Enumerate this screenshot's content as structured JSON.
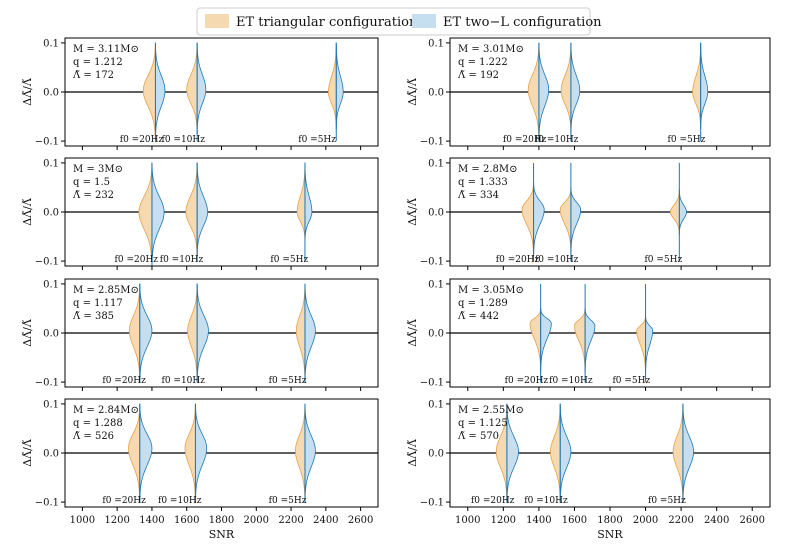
{
  "legend": {
    "entries": [
      {
        "label": "ET triangular configuration",
        "color": "#f5d9b0",
        "edge": "#e8a14a"
      },
      {
        "label": "ET two−L configuration",
        "color": "#c6dff0",
        "edge": "#1f77b4"
      }
    ]
  },
  "axes_common": {
    "xlabel": "SNR",
    "ylabel": "ΔΛ̃/Λ̃",
    "xlim": [
      900,
      2700
    ],
    "ylim": [
      -0.11,
      0.11
    ],
    "xticks": [
      1000,
      1200,
      1400,
      1600,
      1800,
      2000,
      2200,
      2400,
      2600
    ],
    "xtick_labels": [
      "1000",
      "1200",
      "1400",
      "1600",
      "1800",
      "2000",
      "2200",
      "2400",
      "2600"
    ],
    "yticks": [
      -0.1,
      0.0,
      0.1
    ],
    "ytick_labels": [
      "−0.1",
      "0.0",
      "0.1"
    ],
    "colors": {
      "triangular_fill": "#f5d9b0",
      "triangular_edge": "#e8a14a",
      "twoL_fill": "#c6dff0",
      "twoL_edge": "#1f77b4",
      "zero_line": "#000000"
    }
  },
  "chart_data": [
    {
      "type": "violin",
      "params": {
        "M": "M = 3.11M⊙",
        "q": "q = 1.212",
        "L": "Λ̃ = 172"
      },
      "violins": [
        {
          "x": 1420,
          "label": "f0 =20Hz",
          "label_x": 1340,
          "left_w": 70,
          "right_w": 55,
          "center": 0.003,
          "top": 0.1,
          "bottom": -0.1
        },
        {
          "x": 1660,
          "label": "f0 =10Hz",
          "label_x": 1580,
          "left_w": 60,
          "right_w": 50,
          "center": 0.005,
          "top": 0.1,
          "bottom": -0.085
        },
        {
          "x": 2460,
          "label": "f0 =5Hz",
          "label_x": 2350,
          "left_w": 45,
          "right_w": 40,
          "center": 0.0,
          "top": 0.1,
          "bottom": -0.075
        }
      ]
    },
    {
      "type": "violin",
      "params": {
        "M": "M = 3.01M⊙",
        "q": "q = 1.222",
        "L": "Λ̃ = 192"
      },
      "violins": [
        {
          "x": 1400,
          "label": "f0 =20Hz",
          "label_x": 1320,
          "left_w": 60,
          "right_w": 55,
          "center": 0.005,
          "top": 0.1,
          "bottom": -0.1
        },
        {
          "x": 1580,
          "label": "f0 =10Hz",
          "label_x": 1500,
          "left_w": 55,
          "right_w": 50,
          "center": 0.003,
          "top": 0.1,
          "bottom": -0.085
        },
        {
          "x": 2310,
          "label": "f0 =5Hz",
          "label_x": 2230,
          "left_w": 45,
          "right_w": 40,
          "center": 0.0,
          "top": 0.1,
          "bottom": -0.075
        }
      ]
    },
    {
      "type": "violin",
      "params": {
        "M": "M = 3M⊙",
        "q": "q = 1.5",
        "L": "Λ̃ = 232"
      },
      "violins": [
        {
          "x": 1400,
          "label": "f0 =20Hz",
          "label_x": 1310,
          "left_w": 75,
          "right_w": 70,
          "center": 0.0,
          "top": 0.1,
          "bottom": -0.11
        },
        {
          "x": 1660,
          "label": "f0 =10Hz",
          "label_x": 1570,
          "left_w": 65,
          "right_w": 60,
          "center": 0.0,
          "top": 0.1,
          "bottom": -0.09
        },
        {
          "x": 2280,
          "label": "f0 =5Hz",
          "label_x": 2190,
          "left_w": 45,
          "right_w": 40,
          "center": 0.0,
          "top": 0.1,
          "bottom": -0.06
        }
      ]
    },
    {
      "type": "violin",
      "params": {
        "M": "M = 2.8M⊙",
        "q": "q = 1.333",
        "L": "Λ̃ = 334"
      },
      "violins": [
        {
          "x": 1370,
          "label": "f0 =20Hz",
          "label_x": 1280,
          "left_w": 65,
          "right_w": 60,
          "center": 0.005,
          "top": 0.06,
          "bottom": -0.09
        },
        {
          "x": 1580,
          "label": "f0 =10Hz",
          "label_x": 1500,
          "left_w": 60,
          "right_w": 55,
          "center": 0.005,
          "top": 0.05,
          "bottom": -0.085
        },
        {
          "x": 2190,
          "label": "f0 =5Hz",
          "label_x": 2100,
          "left_w": 50,
          "right_w": 40,
          "center": 0.0,
          "top": 0.045,
          "bottom": -0.045
        }
      ]
    },
    {
      "type": "violin",
      "params": {
        "M": "M = 2.85M⊙",
        "q": "q = 1.117",
        "L": "Λ̃ = 385"
      },
      "violins": [
        {
          "x": 1330,
          "label": "f0 =20Hz",
          "label_x": 1240,
          "left_w": 60,
          "right_w": 70,
          "center": 0.005,
          "top": 0.1,
          "bottom": -0.1
        },
        {
          "x": 1660,
          "label": "f0 =10Hz",
          "label_x": 1580,
          "left_w": 55,
          "right_w": 65,
          "center": 0.005,
          "top": 0.1,
          "bottom": -0.1
        },
        {
          "x": 2280,
          "label": "f0 =5Hz",
          "label_x": 2180,
          "left_w": 50,
          "right_w": 60,
          "center": 0.005,
          "top": 0.1,
          "bottom": -0.1
        }
      ]
    },
    {
      "type": "violin",
      "params": {
        "M": "M = 3.05M⊙",
        "q": "q = 1.289",
        "L": "Λ̃ = 442"
      },
      "violins": [
        {
          "x": 1410,
          "label": "f0 =20Hz",
          "label_x": 1330,
          "left_w": 60,
          "right_w": 60,
          "center": 0.02,
          "top": 0.05,
          "bottom": -0.08
        },
        {
          "x": 1660,
          "label": "f0 =10Hz",
          "label_x": 1580,
          "left_w": 60,
          "right_w": 55,
          "center": 0.015,
          "top": 0.05,
          "bottom": -0.08
        },
        {
          "x": 2000,
          "label": "f0 =5Hz",
          "label_x": 1920,
          "left_w": 50,
          "right_w": 40,
          "center": 0.005,
          "top": 0.035,
          "bottom": -0.085
        }
      ]
    },
    {
      "type": "violin",
      "params": {
        "M": "M = 2.84M⊙",
        "q": "q = 1.288",
        "L": "Λ̃ = 526"
      },
      "violins": [
        {
          "x": 1330,
          "label": "f0 =20Hz",
          "label_x": 1240,
          "left_w": 65,
          "right_w": 70,
          "center": 0.01,
          "top": 0.1,
          "bottom": -0.1
        },
        {
          "x": 1650,
          "label": "f0 =10Hz",
          "label_x": 1560,
          "left_w": 60,
          "right_w": 65,
          "center": 0.01,
          "top": 0.1,
          "bottom": -0.1
        },
        {
          "x": 2280,
          "label": "f0 =5Hz",
          "label_x": 2180,
          "left_w": 55,
          "right_w": 60,
          "center": 0.005,
          "top": 0.1,
          "bottom": -0.1
        }
      ]
    },
    {
      "type": "violin",
      "params": {
        "M": "M = 2.55M⊙",
        "q": "q = 1.125",
        "L": "Λ̃ = 570"
      },
      "violins": [
        {
          "x": 1220,
          "label": "f0 =20Hz",
          "label_x": 1140,
          "left_w": 60,
          "right_w": 65,
          "center": 0.003,
          "top": 0.1,
          "bottom": -0.1
        },
        {
          "x": 1520,
          "label": "f0 =10Hz",
          "label_x": 1440,
          "left_w": 55,
          "right_w": 60,
          "center": 0.003,
          "top": 0.1,
          "bottom": -0.1
        },
        {
          "x": 2210,
          "label": "f0 =5Hz",
          "label_x": 2120,
          "left_w": 55,
          "right_w": 60,
          "center": 0.003,
          "top": 0.1,
          "bottom": -0.1
        }
      ]
    }
  ]
}
